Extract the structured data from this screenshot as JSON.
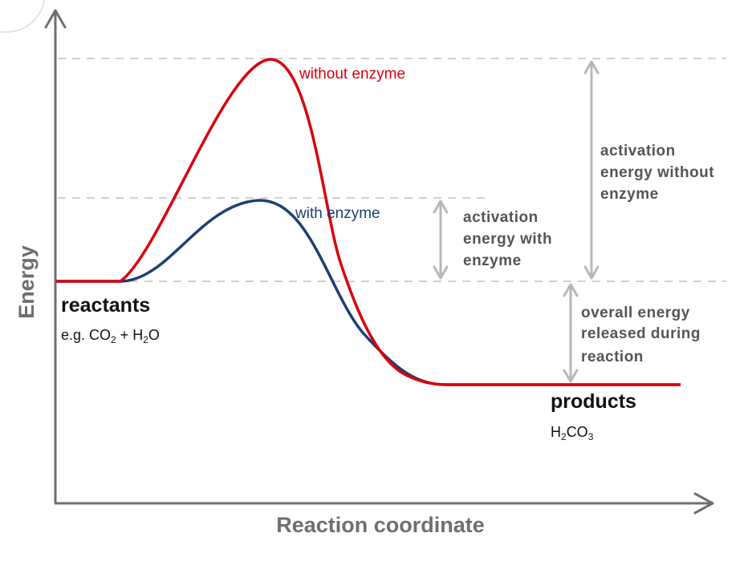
{
  "axes": {
    "x_title": "Reaction coordinate",
    "y_title": "Energy"
  },
  "curves": {
    "without_enzyme": {
      "label": "without enzyme",
      "color": "#d8000c"
    },
    "with_enzyme": {
      "label": "with enzyme",
      "color": "#1d3f75"
    }
  },
  "reactants": {
    "title": "reactants",
    "example_prefix": "e.g. CO",
    "example_sub1": "2",
    "example_mid": " + H",
    "example_sub2": "2",
    "example_suffix": "O"
  },
  "products": {
    "title": "products",
    "formula_h": "H",
    "formula_sub1": "2",
    "formula_co": "CO",
    "formula_sub2": "3"
  },
  "annotations": {
    "activation_with_enzyme": [
      "activation",
      "energy with",
      "enzyme"
    ],
    "activation_without_enzyme": [
      "activation",
      "energy without",
      "enzyme"
    ],
    "overall_energy": [
      "overall energy",
      "released during",
      "reaction"
    ]
  },
  "colors": {
    "axis": "#6f6f6f",
    "guide": "#d0d0d0",
    "dimension_arrow": "#b8b8b8",
    "annotation_text": "#555555"
  }
}
